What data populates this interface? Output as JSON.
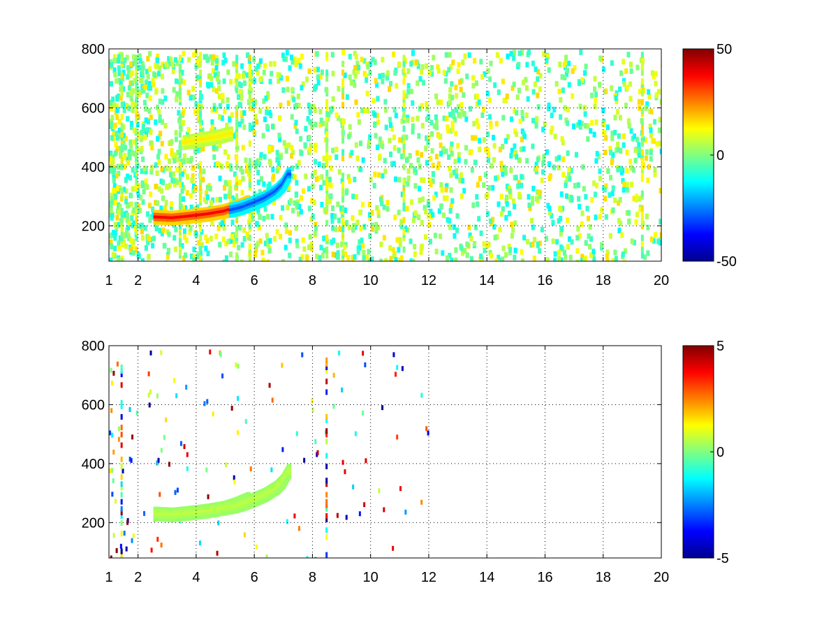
{
  "chart_data": [
    {
      "type": "heatmap",
      "title": "",
      "xlabel": "",
      "ylabel": "",
      "xlim": [
        1,
        20
      ],
      "ylim": [
        80,
        800
      ],
      "x_ticks": [
        1,
        2,
        4,
        6,
        8,
        10,
        12,
        14,
        16,
        18,
        20
      ],
      "y_ticks": [
        200,
        400,
        600,
        800
      ],
      "grid": true,
      "colormap": "jet",
      "colorbar": {
        "min": -50,
        "max": 50,
        "ticks": [
          50,
          0,
          -50
        ]
      },
      "features": [
        {
          "kind": "curve",
          "x": [
            2.6,
            3.2,
            3.8,
            4.4,
            5.0,
            5.4,
            5.8
          ],
          "y": [
            235,
            232,
            238,
            245,
            255,
            268,
            285
          ],
          "value": 38
        },
        {
          "kind": "curve",
          "x": [
            5.2,
            5.6,
            6.0,
            6.4,
            6.8,
            7.0,
            7.2
          ],
          "y": [
            258,
            268,
            283,
            300,
            325,
            345,
            380
          ],
          "value": -30
        },
        {
          "kind": "curve",
          "x": [
            3.6,
            4.2,
            4.8,
            5.2
          ],
          "y": [
            488,
            498,
            508,
            518
          ],
          "value": 14
        }
      ]
    },
    {
      "type": "heatmap",
      "title": "",
      "xlabel": "",
      "ylabel": "",
      "xlim": [
        1,
        20
      ],
      "ylim": [
        80,
        800
      ],
      "x_ticks": [
        1,
        2,
        4,
        6,
        8,
        10,
        12,
        14,
        16,
        18,
        20
      ],
      "y_ticks": [
        200,
        400,
        600,
        800
      ],
      "grid": true,
      "colormap": "jet",
      "colorbar": {
        "min": -5,
        "max": 5,
        "ticks": [
          5,
          0,
          -5
        ]
      },
      "features": [
        {
          "kind": "curve",
          "x": [
            2.6,
            3.2,
            3.8,
            4.4,
            5.0,
            5.4,
            5.8
          ],
          "y": [
            235,
            232,
            238,
            245,
            255,
            268,
            285
          ],
          "value": 0.6
        },
        {
          "kind": "curve",
          "x": [
            5.2,
            5.6,
            6.0,
            6.4,
            6.8,
            7.0,
            7.2
          ],
          "y": [
            258,
            268,
            283,
            300,
            325,
            345,
            380
          ],
          "value": 0.6
        }
      ]
    }
  ]
}
